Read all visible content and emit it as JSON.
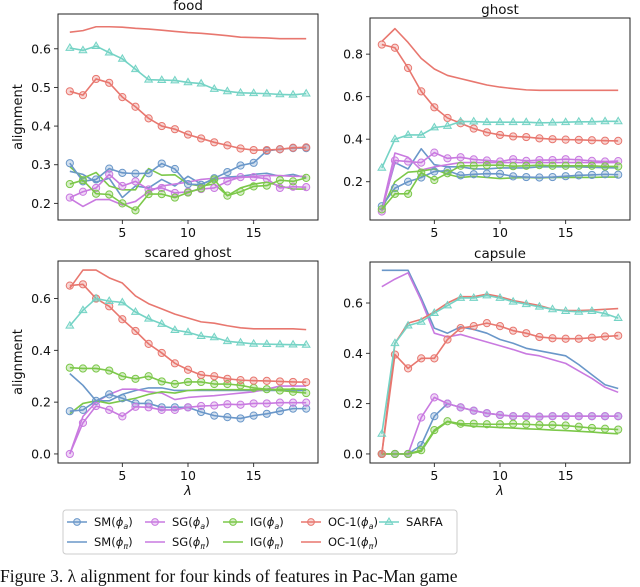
{
  "chart_data": [
    {
      "type": "line",
      "title": "food",
      "xlabel": "",
      "ylabel": "alignment",
      "ylim": [
        0.157,
        0.69
      ],
      "xlim": [
        0.1,
        19.9
      ],
      "xticks": [
        5,
        10,
        15
      ],
      "yticks": [
        "0.2",
        "0.3",
        "0.4",
        "0.5",
        "0.6"
      ],
      "grid": false,
      "x": [
        1,
        2,
        3,
        4,
        5,
        6,
        7,
        8,
        9,
        10,
        11,
        12,
        13,
        14,
        15,
        16,
        17,
        18,
        19
      ],
      "series": {
        "OC_pi": [
          0.643,
          0.647,
          0.657,
          0.657,
          0.656,
          0.653,
          0.651,
          0.648,
          0.645,
          0.642,
          0.64,
          0.637,
          0.634,
          0.63,
          0.629,
          0.628,
          0.626,
          0.626,
          0.626
        ],
        "SARFA": [
          0.602,
          0.596,
          0.607,
          0.59,
          0.574,
          0.547,
          0.52,
          0.519,
          0.518,
          0.513,
          0.51,
          0.496,
          0.49,
          0.486,
          0.485,
          0.484,
          0.482,
          0.481,
          0.484
        ],
        "OC_a": [
          0.49,
          0.48,
          0.522,
          0.512,
          0.475,
          0.45,
          0.42,
          0.4,
          0.392,
          0.378,
          0.368,
          0.358,
          0.35,
          0.342,
          0.338,
          0.338,
          0.34,
          0.344,
          0.345
        ],
        "SM_a": [
          0.304,
          0.257,
          0.262,
          0.29,
          0.279,
          0.277,
          0.278,
          0.303,
          0.289,
          0.25,
          0.248,
          0.265,
          0.281,
          0.298,
          0.305,
          0.336,
          0.34,
          0.343,
          0.343
        ],
        "SM_pi": [
          0.283,
          0.275,
          0.255,
          0.265,
          0.215,
          0.245,
          0.24,
          0.262,
          0.245,
          0.27,
          0.25,
          0.262,
          0.268,
          0.27,
          0.275,
          0.278,
          0.27,
          0.275,
          0.266
        ],
        "SG_a": [
          0.215,
          0.23,
          0.24,
          0.275,
          0.245,
          0.257,
          0.236,
          0.24,
          0.227,
          0.23,
          0.237,
          0.24,
          0.257,
          0.268,
          0.268,
          0.264,
          0.24,
          0.243,
          0.242
        ],
        "SG_pi": [
          0.213,
          0.192,
          0.21,
          0.21,
          0.196,
          0.205,
          0.23,
          0.245,
          0.25,
          0.255,
          0.262,
          0.265,
          0.265,
          0.267,
          0.27,
          0.272,
          0.272,
          0.27,
          0.27
        ],
        "IG_a": [
          0.25,
          0.26,
          0.225,
          0.223,
          0.2,
          0.182,
          0.224,
          0.224,
          0.215,
          0.228,
          0.239,
          0.262,
          0.22,
          0.23,
          0.244,
          0.246,
          0.26,
          0.257,
          0.266
        ],
        "IG_pi": [
          0.295,
          0.265,
          0.28,
          0.245,
          0.235,
          0.235,
          0.29,
          0.273,
          0.274,
          0.25,
          0.245,
          0.25,
          0.22,
          0.24,
          0.25,
          0.255,
          0.245,
          0.237,
          0.237
        ]
      }
    },
    {
      "type": "line",
      "title": "ghost",
      "xlabel": "",
      "ylabel": "",
      "ylim": [
        0.02,
        0.97
      ],
      "xlim": [
        0.1,
        19.9
      ],
      "xticks": [
        5,
        10,
        15
      ],
      "yticks": [
        "0.2",
        "0.4",
        "0.6",
        "0.8"
      ],
      "grid": false,
      "x": [
        1,
        2,
        3,
        4,
        5,
        6,
        7,
        8,
        9,
        10,
        11,
        12,
        13,
        14,
        15,
        16,
        17,
        18,
        19
      ],
      "series": {
        "OC_pi": [
          0.86,
          0.92,
          0.855,
          0.78,
          0.73,
          0.7,
          0.685,
          0.67,
          0.655,
          0.645,
          0.638,
          0.632,
          0.63,
          0.63,
          0.63,
          0.63,
          0.63,
          0.63,
          0.63
        ],
        "OC_a": [
          0.845,
          0.83,
          0.735,
          0.625,
          0.55,
          0.5,
          0.475,
          0.45,
          0.432,
          0.42,
          0.413,
          0.41,
          0.404,
          0.4,
          0.398,
          0.397,
          0.395,
          0.393,
          0.392
        ],
        "SARFA": [
          0.265,
          0.4,
          0.42,
          0.42,
          0.455,
          0.462,
          0.483,
          0.483,
          0.48,
          0.48,
          0.48,
          0.48,
          0.477,
          0.478,
          0.48,
          0.482,
          0.482,
          0.484,
          0.484
        ],
        "SG_a": [
          0.06,
          0.3,
          0.295,
          0.29,
          0.337,
          0.31,
          0.315,
          0.305,
          0.3,
          0.295,
          0.306,
          0.298,
          0.302,
          0.302,
          0.306,
          0.303,
          0.298,
          0.295,
          0.297
        ],
        "SG_pi": [
          0.07,
          0.335,
          0.315,
          0.255,
          0.27,
          0.28,
          0.29,
          0.29,
          0.29,
          0.29,
          0.29,
          0.29,
          0.29,
          0.29,
          0.29,
          0.29,
          0.29,
          0.29,
          0.29
        ],
        "SM_a": [
          0.085,
          0.17,
          0.2,
          0.22,
          0.248,
          0.252,
          0.23,
          0.235,
          0.238,
          0.237,
          0.225,
          0.222,
          0.22,
          0.222,
          0.226,
          0.23,
          0.232,
          0.235,
          0.233
        ],
        "SM_pi": [
          0.07,
          0.29,
          0.26,
          0.355,
          0.28,
          0.27,
          0.27,
          0.26,
          0.26,
          0.265,
          0.265,
          0.265,
          0.27,
          0.27,
          0.27,
          0.27,
          0.268,
          0.266,
          0.265
        ],
        "IG_a": [
          0.07,
          0.143,
          0.143,
          0.243,
          0.208,
          0.24,
          0.275,
          0.275,
          0.278,
          0.278,
          0.273,
          0.275,
          0.278,
          0.275,
          0.275,
          0.275,
          0.275,
          0.272,
          0.272
        ],
        "IG_pi": [
          0.07,
          0.2,
          0.245,
          0.25,
          0.26,
          0.235,
          0.22,
          0.225,
          0.22,
          0.215,
          0.218,
          0.22,
          0.218,
          0.22,
          0.22,
          0.22,
          0.22,
          0.222,
          0.222
        ]
      }
    },
    {
      "type": "line",
      "title": "scared ghost",
      "xlabel": "λ",
      "ylabel": "alignment",
      "ylim": [
        -0.035,
        0.745
      ],
      "xlim": [
        0.1,
        19.9
      ],
      "xticks": [
        5,
        10,
        15
      ],
      "yticks": [
        "0.0",
        "0.2",
        "0.4",
        "0.6"
      ],
      "grid": false,
      "x": [
        1,
        2,
        3,
        4,
        5,
        6,
        7,
        8,
        9,
        10,
        11,
        12,
        13,
        14,
        15,
        16,
        17,
        18,
        19
      ],
      "series": {
        "OC_pi": [
          0.64,
          0.71,
          0.71,
          0.68,
          0.66,
          0.61,
          0.58,
          0.56,
          0.54,
          0.525,
          0.51,
          0.505,
          0.495,
          0.487,
          0.483,
          0.483,
          0.483,
          0.483,
          0.48
        ],
        "OC_a": [
          0.65,
          0.655,
          0.6,
          0.57,
          0.52,
          0.475,
          0.425,
          0.39,
          0.35,
          0.325,
          0.305,
          0.3,
          0.29,
          0.285,
          0.283,
          0.282,
          0.28,
          0.278,
          0.277
        ],
        "SARFA": [
          0.495,
          0.555,
          0.6,
          0.59,
          0.585,
          0.548,
          0.522,
          0.502,
          0.478,
          0.47,
          0.455,
          0.45,
          0.435,
          0.43,
          0.425,
          0.424,
          0.423,
          0.422,
          0.421
        ],
        "IG_a": [
          0.333,
          0.33,
          0.33,
          0.322,
          0.3,
          0.29,
          0.3,
          0.28,
          0.27,
          0.278,
          0.278,
          0.27,
          0.27,
          0.265,
          0.255,
          0.25,
          0.245,
          0.24,
          0.235
        ],
        "IG_pi": [
          0.155,
          0.195,
          0.205,
          0.195,
          0.205,
          0.215,
          0.23,
          0.24,
          0.235,
          0.245,
          0.248,
          0.248,
          0.248,
          0.248,
          0.248,
          0.248,
          0.25,
          0.25,
          0.25
        ],
        "SM_a": [
          0.165,
          0.17,
          0.205,
          0.23,
          0.215,
          0.195,
          0.195,
          0.18,
          0.18,
          0.18,
          0.162,
          0.148,
          0.142,
          0.137,
          0.148,
          0.155,
          0.165,
          0.175,
          0.175
        ],
        "SM_pi": [
          0.31,
          0.265,
          0.205,
          0.205,
          0.23,
          0.245,
          0.255,
          0.255,
          0.245,
          0.245,
          0.245,
          0.245,
          0.245,
          0.245,
          0.245,
          0.245,
          0.245,
          0.245,
          0.245
        ],
        "SG_a": [
          0.0,
          0.12,
          0.185,
          0.17,
          0.145,
          0.182,
          0.18,
          0.17,
          0.17,
          0.18,
          0.185,
          0.187,
          0.192,
          0.19,
          0.195,
          0.195,
          0.198,
          0.198,
          0.198
        ],
        "SG_pi": [
          0.0,
          0.145,
          0.2,
          0.23,
          0.25,
          0.25,
          0.24,
          0.235,
          0.21,
          0.218,
          0.222,
          0.225,
          0.23,
          0.235,
          0.24,
          0.25,
          0.262,
          0.262,
          0.262
        ]
      }
    },
    {
      "type": "line",
      "title": "capsule",
      "xlabel": "λ",
      "ylabel": "",
      "ylim": [
        -0.036,
        0.763
      ],
      "xlim": [
        0.1,
        19.9
      ],
      "xticks": [
        5,
        10,
        15
      ],
      "yticks": [
        "0.0",
        "0.2",
        "0.4",
        "0.6"
      ],
      "grid": false,
      "x": [
        1,
        2,
        3,
        4,
        5,
        6,
        7,
        8,
        9,
        10,
        11,
        12,
        13,
        14,
        15,
        16,
        17,
        18,
        19
      ],
      "series": {
        "SM_pi": [
          0.73,
          0.73,
          0.73,
          0.62,
          0.5,
          0.48,
          0.505,
          0.495,
          0.48,
          0.455,
          0.44,
          0.42,
          0.41,
          0.4,
          0.39,
          0.355,
          0.315,
          0.275,
          0.26
        ],
        "SG_pi": [
          0.665,
          0.695,
          0.72,
          0.61,
          0.48,
          0.465,
          0.475,
          0.46,
          0.445,
          0.43,
          0.415,
          0.398,
          0.39,
          0.375,
          0.36,
          0.33,
          0.3,
          0.265,
          0.245
        ],
        "OC_pi": [
          0.0,
          0.44,
          0.52,
          0.535,
          0.565,
          0.6,
          0.625,
          0.625,
          0.635,
          0.625,
          0.61,
          0.6,
          0.59,
          0.575,
          0.57,
          0.57,
          0.572,
          0.575,
          0.578
        ],
        "SARFA": [
          0.08,
          0.44,
          0.51,
          0.525,
          0.56,
          0.59,
          0.62,
          0.62,
          0.63,
          0.62,
          0.605,
          0.595,
          0.585,
          0.575,
          0.568,
          0.565,
          0.568,
          0.558,
          0.54
        ],
        "OC_a": [
          0.0,
          0.395,
          0.34,
          0.38,
          0.38,
          0.455,
          0.5,
          0.508,
          0.52,
          0.508,
          0.49,
          0.48,
          0.465,
          0.46,
          0.458,
          0.458,
          0.462,
          0.467,
          0.47
        ],
        "SM_a": [
          0,
          0,
          0,
          0.035,
          0.15,
          0.2,
          0.185,
          0.172,
          0.162,
          0.155,
          0.15,
          0.15,
          0.148,
          0.15,
          0.15,
          0.15,
          0.15,
          0.15,
          0.15
        ],
        "SG_a": [
          0,
          0,
          0,
          0.145,
          0.225,
          0.2,
          0.185,
          0.172,
          0.162,
          0.155,
          0.15,
          0.15,
          0.148,
          0.15,
          0.15,
          0.15,
          0.15,
          0.15,
          0.15
        ],
        "IG_pi": [
          0,
          0,
          0,
          0.01,
          0.09,
          0.128,
          0.115,
          0.11,
          0.108,
          0.105,
          0.103,
          0.1,
          0.098,
          0.095,
          0.093,
          0.09,
          0.087,
          0.083,
          0.08
        ],
        "IG_a": [
          0,
          0,
          0,
          0.015,
          0.095,
          0.13,
          0.12,
          0.12,
          0.118,
          0.118,
          0.12,
          0.118,
          0.115,
          0.115,
          0.113,
          0.108,
          0.103,
          0.1,
          0.097
        ]
      }
    }
  ],
  "legend": {
    "placement": "bottom",
    "items": [
      {
        "key": "SM_a",
        "method": "SM",
        "phi": "ϕ",
        "sub": "a",
        "marker": "circle",
        "color": "#6a97c9"
      },
      {
        "key": "SG_a",
        "method": "SG",
        "phi": "ϕ",
        "sub": "a",
        "marker": "circle",
        "color": "#c97ae0"
      },
      {
        "key": "IG_a",
        "method": "IG",
        "phi": "ϕ",
        "sub": "a",
        "marker": "circle",
        "color": "#7cc84a"
      },
      {
        "key": "OC_a",
        "method": "OC-1",
        "phi": "ϕ",
        "sub": "a",
        "marker": "circle",
        "color": "#e8776f"
      },
      {
        "key": "SARFA",
        "method": "SARFA",
        "phi": "",
        "sub": "",
        "marker": "triangle",
        "color": "#74d3c5"
      },
      {
        "key": "SM_pi",
        "method": "SM",
        "phi": "ϕ",
        "sub": "π",
        "marker": "none",
        "color": "#6a97c9"
      },
      {
        "key": "SG_pi",
        "method": "SG",
        "phi": "ϕ",
        "sub": "π",
        "marker": "none",
        "color": "#c97ae0"
      },
      {
        "key": "IG_pi",
        "method": "IG",
        "phi": "ϕ",
        "sub": "π",
        "marker": "none",
        "color": "#7cc84a"
      },
      {
        "key": "OC_pi",
        "method": "OC-1",
        "phi": "ϕ",
        "sub": "π",
        "marker": "none",
        "color": "#e8776f"
      }
    ]
  },
  "caption": "Figure 3. λ alignment for four kinds of features in Pac-Man game"
}
